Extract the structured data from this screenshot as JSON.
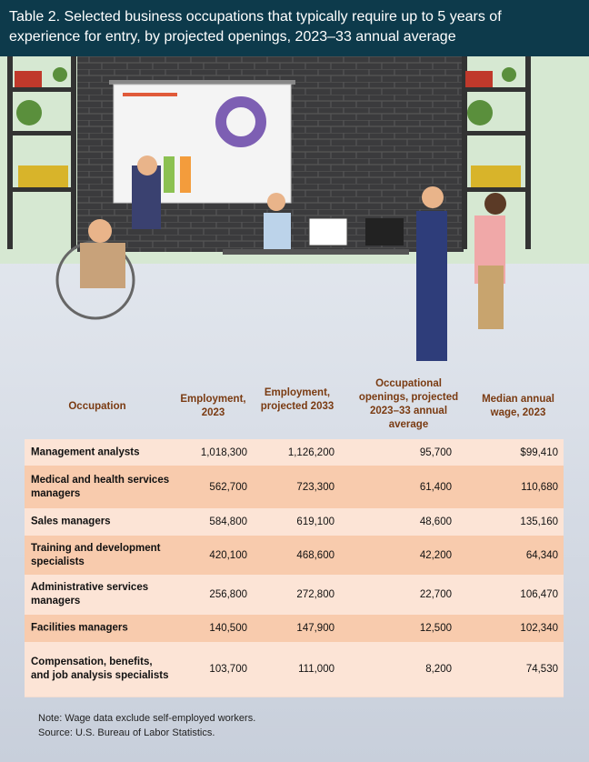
{
  "title": "Table 2. Selected business occupations that typically require up to 5 years of experience for entry, by projected openings, 2023–33 annual average",
  "table": {
    "columns": [
      "Occupation",
      "Employment, 2023",
      "Employment, projected 2033",
      "Occupational openings, projected 2023–33 annual average",
      "Median annual wage, 2023"
    ],
    "rows": [
      [
        "Management analysts",
        "1,018,300",
        "1,126,200",
        "95,700",
        "$99,410"
      ],
      [
        "Medical and health services managers",
        "562,700",
        "723,300",
        "61,400",
        "110,680"
      ],
      [
        "Sales managers",
        "584,800",
        "619,100",
        "48,600",
        "135,160"
      ],
      [
        "Training and development specialists",
        "420,100",
        "468,600",
        "42,200",
        "64,340"
      ],
      [
        "Administrative services managers",
        "256,800",
        "272,800",
        "22,700",
        "106,470"
      ],
      [
        "Facilities managers",
        "140,500",
        "147,900",
        "12,500",
        "102,340"
      ],
      [
        "Compensation, benefits, and job analysis specialists",
        "103,700",
        "111,000",
        "8,200",
        "74,530"
      ]
    ]
  },
  "notes": [
    "Note: Wage data exclude self-employed workers.",
    "Source: U.S. Bureau of Labor Statistics."
  ]
}
